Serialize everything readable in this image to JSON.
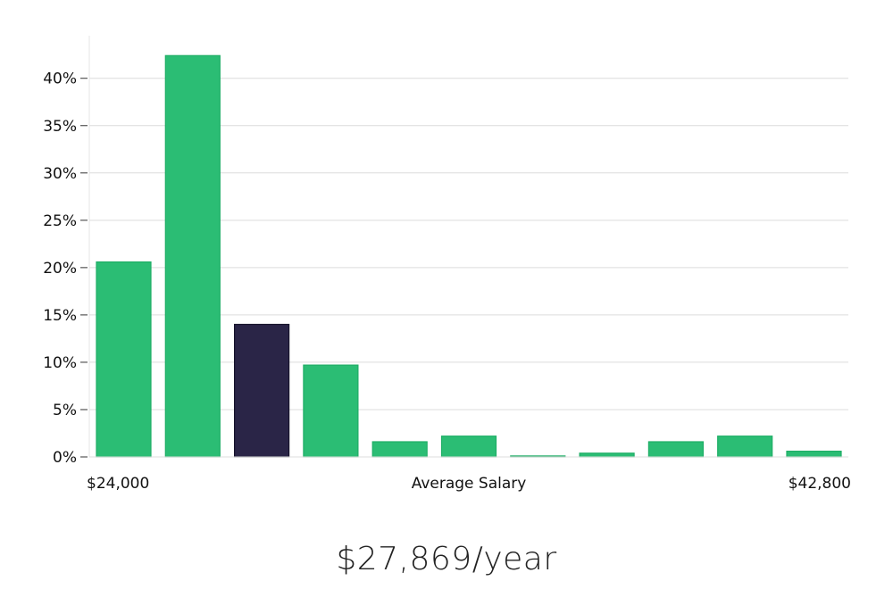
{
  "chart_data": {
    "type": "bar",
    "title": "",
    "xlabel": "Average Salary",
    "ylabel": "",
    "x_min_label": "$24,000",
    "x_max_label": "$42,800",
    "y_tick_labels": [
      "0%",
      "5%",
      "10%",
      "15%",
      "20%",
      "25%",
      "30%",
      "35%",
      "40%"
    ],
    "ylim": [
      0,
      44.5
    ],
    "grid": true,
    "highlighted_index": 2,
    "values": [
      20.6,
      42.4,
      14.0,
      9.7,
      1.6,
      2.2,
      0.1,
      0.4,
      1.6,
      2.2,
      0.6
    ],
    "colors": {
      "bar": "#2bbd74",
      "bar_edge": "#1fae66",
      "highlight": "#2a2547",
      "highlight_edge": "#15122b",
      "grid": "#dcdcdc",
      "axis": "#e4e4e4"
    }
  },
  "summary": {
    "salary_text": "$27,869/year"
  }
}
